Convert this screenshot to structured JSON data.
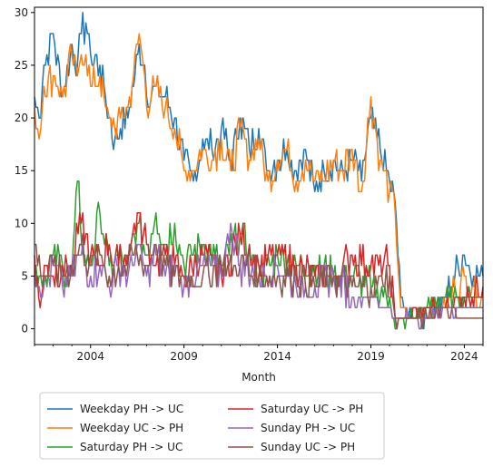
{
  "chart_data": {
    "type": "line",
    "title": "",
    "xlabel": "Month",
    "ylabel": "",
    "xlim": [
      2001.0,
      2025.0
    ],
    "ylim": [
      -1.5,
      30.5
    ],
    "xticks": [
      2004,
      2009,
      2014,
      2019,
      2024
    ],
    "yticks": [
      0,
      5,
      10,
      15,
      20,
      25,
      30
    ],
    "grid": false,
    "legend_position": "below-center",
    "series": [
      {
        "name": "Weekday PH -> UC",
        "color": "#1f77b4",
        "x": [
          2001.0,
          2001.25,
          2001.5,
          2002.0,
          2002.5,
          2003.0,
          2003.3,
          2003.5,
          2003.75,
          2004.0,
          2004.5,
          2004.8,
          2005.0,
          2005.3,
          2005.6,
          2006.0,
          2006.3,
          2006.6,
          2006.9,
          2007.0,
          2007.5,
          2008.0,
          2008.5,
          2009.0,
          2009.5,
          2010.0,
          2010.5,
          2011.0,
          2011.5,
          2012.0,
          2012.5,
          2013.0,
          2013.5,
          2014.0,
          2014.5,
          2015.0,
          2015.5,
          2016.0,
          2016.5,
          2017.0,
          2017.5,
          2018.0,
          2018.5,
          2019.0,
          2019.5,
          2020.0,
          2020.3,
          2020.6,
          2021.0,
          2021.5,
          2022.0,
          2022.5,
          2023.0,
          2023.5,
          2024.0,
          2024.5,
          2025.0
        ],
        "y": [
          22,
          20,
          25,
          28,
          22,
          27,
          25,
          28,
          29,
          26,
          25,
          22,
          20,
          18,
          19,
          20,
          23,
          27,
          25,
          22,
          23,
          22,
          20,
          16,
          14,
          18,
          17,
          19,
          16,
          20,
          17,
          19,
          15,
          16,
          17,
          15,
          17,
          13,
          15,
          16,
          15,
          16,
          14,
          20,
          17,
          14,
          12,
          3,
          1,
          1,
          1,
          2,
          3,
          5,
          7,
          5,
          5
        ]
      },
      {
        "name": "Weekday UC -> PH",
        "color": "#ff7f0e",
        "x": [
          2001.0,
          2001.25,
          2001.5,
          2002.0,
          2002.5,
          2003.0,
          2003.3,
          2003.5,
          2003.75,
          2004.0,
          2004.5,
          2004.8,
          2005.0,
          2005.3,
          2005.6,
          2006.0,
          2006.3,
          2006.6,
          2006.9,
          2007.0,
          2007.5,
          2008.0,
          2008.5,
          2009.0,
          2009.5,
          2010.0,
          2010.5,
          2011.0,
          2011.5,
          2012.0,
          2012.5,
          2013.0,
          2013.5,
          2014.0,
          2014.5,
          2015.0,
          2015.5,
          2016.0,
          2016.5,
          2017.0,
          2017.5,
          2018.0,
          2018.5,
          2019.0,
          2019.5,
          2020.0,
          2020.3,
          2020.6,
          2021.0,
          2021.5,
          2022.0,
          2022.5,
          2023.0,
          2023.5,
          2024.0,
          2024.5,
          2025.0
        ],
        "y": [
          21,
          18,
          23,
          24,
          22,
          26,
          24,
          26,
          26,
          23,
          24,
          21,
          20,
          19,
          20,
          21,
          24,
          28,
          24,
          21,
          23,
          21,
          19,
          15,
          15,
          17,
          16,
          18,
          15,
          19,
          16,
          18,
          14,
          16,
          17,
          14,
          16,
          14,
          14,
          16,
          15,
          17,
          13,
          22,
          16,
          13,
          11,
          2,
          1,
          1,
          1,
          2,
          2,
          4,
          5,
          4,
          3
        ]
      },
      {
        "name": "Saturday PH -> UC",
        "color": "#2ca02c",
        "x": [
          2001.0,
          2001.5,
          2002.0,
          2002.5,
          2003.0,
          2003.3,
          2003.6,
          2004.0,
          2004.5,
          2005.0,
          2005.5,
          2006.0,
          2006.5,
          2007.0,
          2007.5,
          2008.0,
          2008.5,
          2009.0,
          2010.0,
          2011.0,
          2012.0,
          2013.0,
          2014.0,
          2015.0,
          2016.0,
          2017.0,
          2018.0,
          2019.0,
          2020.0,
          2020.3,
          2021.0,
          2022.0,
          2023.0,
          2024.0,
          2025.0
        ],
        "y": [
          6,
          5,
          7,
          6,
          5,
          14,
          7,
          6,
          11,
          6,
          7,
          6,
          10,
          7,
          11,
          8,
          10,
          6,
          8,
          6,
          9,
          5,
          7,
          6,
          6,
          5,
          5,
          4,
          3,
          0,
          1,
          2,
          3,
          3,
          3
        ]
      },
      {
        "name": "Saturday UC -> PH",
        "color": "#d62728",
        "x": [
          2001.0,
          2001.3,
          2001.6,
          2002.0,
          2002.5,
          2003.0,
          2003.5,
          2004.0,
          2004.5,
          2005.0,
          2005.5,
          2006.0,
          2006.5,
          2007.0,
          2007.5,
          2008.0,
          2008.5,
          2009.0,
          2010.0,
          2011.0,
          2012.0,
          2013.0,
          2014.0,
          2015.0,
          2016.0,
          2017.0,
          2018.0,
          2019.0,
          2020.0,
          2020.3,
          2021.0,
          2022.0,
          2023.0,
          2024.0,
          2025.0
        ],
        "y": [
          7,
          2,
          6,
          5,
          6,
          6,
          10,
          7,
          6,
          8,
          6,
          7,
          11,
          8,
          6,
          7,
          6,
          5,
          7,
          5,
          9,
          6,
          7,
          6,
          5,
          5,
          7,
          6,
          6,
          1,
          1,
          2,
          2,
          3,
          4
        ]
      },
      {
        "name": "Sunday PH -> UC",
        "color": "#9467bd",
        "x": [
          2001.0,
          2001.5,
          2002.0,
          2002.5,
          2003.0,
          2003.5,
          2004.0,
          2004.5,
          2005.0,
          2005.5,
          2006.0,
          2006.5,
          2007.0,
          2007.5,
          2008.0,
          2008.5,
          2009.0,
          2010.0,
          2011.0,
          2011.5,
          2012.0,
          2013.0,
          2014.0,
          2015.0,
          2016.0,
          2017.0,
          2018.0,
          2019.0,
          2020.0,
          2020.3,
          2021.0,
          2022.0,
          2023.0,
          2024.0,
          2025.0
        ],
        "y": [
          5,
          4,
          6,
          4,
          5,
          7,
          5,
          6,
          4,
          6,
          5,
          8,
          5,
          7,
          5,
          6,
          4,
          6,
          5,
          10,
          6,
          5,
          6,
          4,
          4,
          5,
          3,
          3,
          2,
          1,
          1,
          1,
          2,
          2,
          2
        ]
      },
      {
        "name": "Sunday UC -> PH",
        "color": "#8c564b",
        "x": [
          2001.0,
          2001.5,
          2002.0,
          2002.5,
          2003.0,
          2003.5,
          2004.0,
          2004.5,
          2005.0,
          2005.5,
          2006.0,
          2006.5,
          2007.0,
          2007.5,
          2008.0,
          2008.5,
          2009.0,
          2010.0,
          2011.0,
          2012.0,
          2013.0,
          2014.0,
          2015.0,
          2016.0,
          2017.0,
          2018.0,
          2019.0,
          2020.0,
          2020.3,
          2021.0,
          2022.0,
          2023.0,
          2024.0,
          2025.0
        ],
        "y": [
          8,
          5,
          6,
          5,
          6,
          8,
          6,
          7,
          5,
          6,
          6,
          7,
          6,
          8,
          6,
          5,
          5,
          5,
          6,
          6,
          5,
          5,
          5,
          4,
          5,
          4,
          4,
          5,
          1,
          1,
          1,
          2,
          1,
          1
        ]
      }
    ]
  }
}
